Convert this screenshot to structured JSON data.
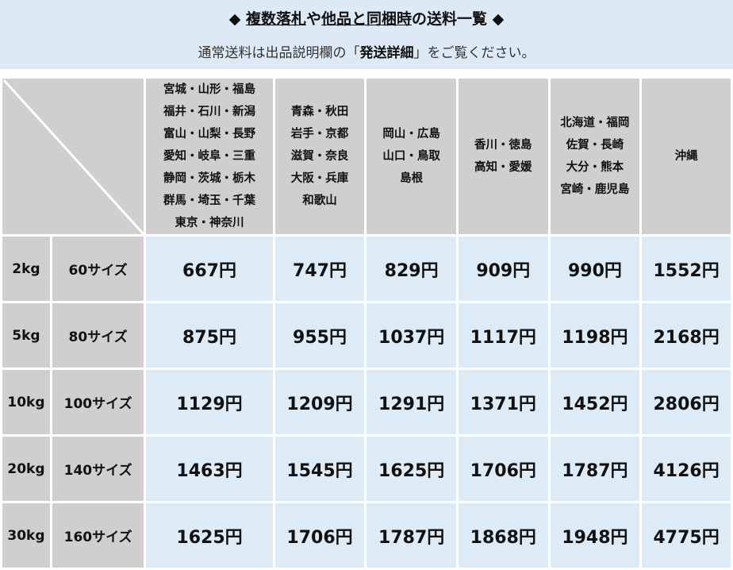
{
  "banner": {
    "diamond_left": "◆",
    "title_parts": [
      "複数落札",
      "や",
      "他品と同梱時",
      "の送料一覧"
    ],
    "diamond_right": "◆",
    "note_before": "通常送料は出品説明欄の「",
    "note_bold": "発送詳細",
    "note_after": "」をご覧ください。"
  },
  "zones": [
    [
      "宮城・山形・福島",
      "福井・石川・新潟",
      "富山・山梨・長野",
      "愛知・岐阜・三重",
      "静岡・茨城・栃木",
      "群馬・埼玉・千葉",
      "東京・神奈川"
    ],
    [
      "青森・秋田",
      "岩手・京都",
      "滋賀・奈良",
      "大阪・兵庫",
      "和歌山"
    ],
    [
      "岡山・広島",
      "山口・鳥取",
      "島根"
    ],
    [
      "香川・徳島",
      "高知・愛媛"
    ],
    [
      "北海道・福岡",
      "佐賀・長崎",
      "大分・熊本",
      "宮崎・鹿児島"
    ],
    [
      "沖縄"
    ]
  ],
  "rows": [
    {
      "weight": "2kg",
      "size": "60サイズ",
      "prices": [
        "667円",
        "747円",
        "829円",
        "909円",
        "990円",
        "1552円"
      ]
    },
    {
      "weight": "5kg",
      "size": "80サイズ",
      "prices": [
        "875円",
        "955円",
        "1037円",
        "1117円",
        "1198円",
        "2168円"
      ]
    },
    {
      "weight": "10kg",
      "size": "100サイズ",
      "prices": [
        "1129円",
        "1209円",
        "1291円",
        "1371円",
        "1452円",
        "2806円"
      ]
    },
    {
      "weight": "20kg",
      "size": "140サイズ",
      "prices": [
        "1463円",
        "1545円",
        "1625円",
        "1706円",
        "1787円",
        "4126円"
      ]
    },
    {
      "weight": "30kg",
      "size": "160サイズ",
      "prices": [
        "1625円",
        "1706円",
        "1787円",
        "1868円",
        "1948円",
        "4775円"
      ]
    }
  ],
  "colors": {
    "banner": "#dde9f5",
    "header_gray": "#d0cece",
    "cell_blue": "#ddebf7"
  }
}
